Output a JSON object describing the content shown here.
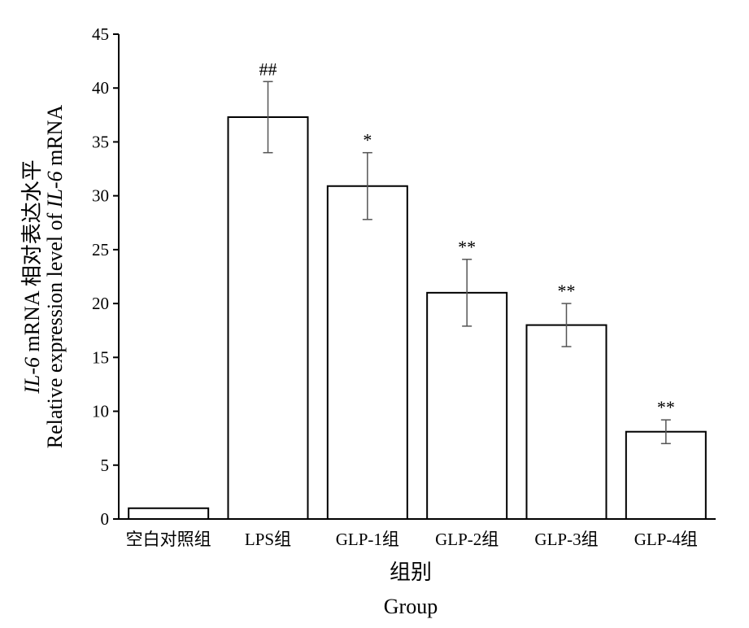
{
  "chart_data": {
    "type": "bar",
    "categories": [
      "空白对照组",
      "LPS组",
      "GLP-1组",
      "GLP-2组",
      "GLP-3组",
      "GLP-4组"
    ],
    "values": [
      1.0,
      37.3,
      30.9,
      21.0,
      18.0,
      8.1
    ],
    "errors": [
      0,
      3.3,
      3.1,
      3.1,
      2.0,
      1.1
    ],
    "significance": [
      "",
      "##",
      "*",
      "**",
      "**",
      "**"
    ],
    "xlabel": "组别",
    "xlabel_en": "Group",
    "ylabel": "IL-6 mRNA 相对表达水平",
    "ylabel_en": "Relative expression level of IL-6 mRNA",
    "ylim": [
      0,
      45
    ],
    "yticks": [
      0,
      5,
      10,
      15,
      20,
      25,
      30,
      35,
      40,
      45
    ],
    "grid": false,
    "bar_fill": "#ffffff",
    "bar_stroke": "#000000"
  }
}
